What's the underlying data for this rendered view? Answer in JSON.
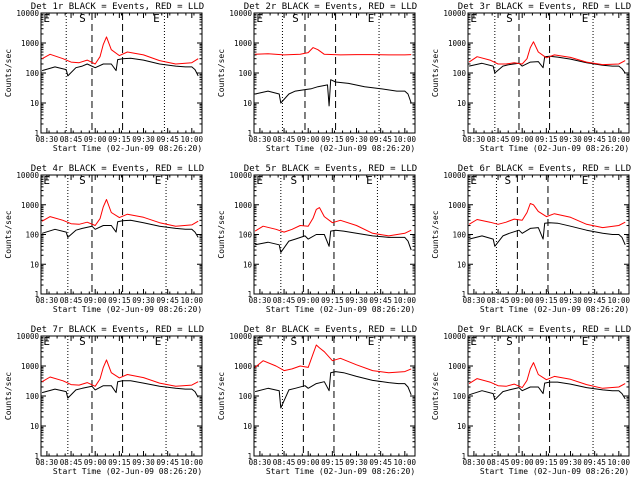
{
  "colors": {
    "events": "#000000",
    "lld": "#ff0000",
    "axes": "#000000",
    "background": "#ffffff"
  },
  "common": {
    "xlabel": "Start Time (02-Jun-09 08:26:20)",
    "ylabel": "Counts/sec",
    "xticks": [
      "08:30",
      "08:45",
      "09:00",
      "09:15",
      "09:30",
      "09:45",
      "10:00"
    ],
    "yticks": [
      "1",
      "10",
      "100",
      "1000",
      "10000"
    ],
    "markers": [
      "E",
      "S",
      "E"
    ]
  },
  "chart_data": [
    {
      "type": "line",
      "title": "Det 1r BLACK = Events, RED = LLD",
      "x_range": [
        "08:26:20",
        "10:06:20"
      ],
      "y_range": [
        1,
        10000
      ],
      "y_scale": "log",
      "grid": false,
      "vlines_dotted": [
        "08:42:00",
        "09:43:00"
      ],
      "vlines_dashed": [
        "08:58:00",
        "09:17:00"
      ],
      "series": [
        {
          "color": "#000000",
          "x": [
            "08:27",
            "08:35",
            "08:42",
            "08:43",
            "08:48",
            "08:52",
            "08:55",
            "09:00",
            "09:05",
            "09:10",
            "09:13",
            "09:14",
            "09:17",
            "09:22",
            "09:30",
            "09:40",
            "09:50",
            "09:56",
            "10:00",
            "10:02",
            "10:04"
          ],
          "y": [
            120,
            160,
            130,
            80,
            150,
            170,
            200,
            150,
            200,
            200,
            120,
            280,
            300,
            310,
            270,
            200,
            170,
            160,
            160,
            130,
            80
          ]
        },
        {
          "color": "#ff0000",
          "x": [
            "08:27",
            "08:32",
            "08:40",
            "08:45",
            "08:50",
            "08:55",
            "09:00",
            "09:03",
            "09:05",
            "09:07",
            "09:10",
            "09:15",
            "09:20",
            "09:30",
            "09:40",
            "09:50",
            "10:00",
            "10:04"
          ],
          "y": [
            300,
            420,
            300,
            230,
            220,
            270,
            200,
            350,
            900,
            1600,
            600,
            380,
            500,
            400,
            260,
            200,
            220,
            300
          ]
        }
      ]
    },
    {
      "type": "line",
      "title": "Det 2r BLACK = Events, RED = LLD",
      "x_range": [
        "08:26:20",
        "10:06:20"
      ],
      "y_range": [
        1,
        10000
      ],
      "y_scale": "log",
      "grid": false,
      "vlines_dotted": [
        "08:44:00",
        "09:44:00"
      ],
      "vlines_dashed": [
        "08:58:00",
        "09:17:00"
      ],
      "series": [
        {
          "color": "#000000",
          "x": [
            "08:27",
            "08:35",
            "08:42",
            "08:43",
            "08:48",
            "08:52",
            "08:58",
            "09:02",
            "09:06",
            "09:12",
            "09:13",
            "09:14",
            "09:17",
            "09:25",
            "09:35",
            "09:45",
            "09:55",
            "10:00",
            "10:02",
            "10:04"
          ],
          "y": [
            20,
            25,
            20,
            10,
            20,
            25,
            28,
            30,
            35,
            40,
            8,
            60,
            50,
            45,
            35,
            30,
            25,
            25,
            20,
            10
          ]
        },
        {
          "color": "#ff0000",
          "x": [
            "08:27",
            "08:35",
            "08:45",
            "08:55",
            "09:00",
            "09:03",
            "09:06",
            "09:10",
            "09:20",
            "09:30",
            "09:40",
            "09:50",
            "10:00",
            "10:04"
          ],
          "y": [
            420,
            440,
            400,
            420,
            480,
            700,
            600,
            420,
            400,
            410,
            410,
            400,
            400,
            410
          ]
        }
      ]
    },
    {
      "type": "line",
      "title": "Det 3r BLACK = Events, RED = LLD",
      "x_range": [
        "08:26:20",
        "10:06:20"
      ],
      "y_range": [
        1,
        10000
      ],
      "y_scale": "log",
      "grid": false,
      "vlines_dotted": [
        "08:43:00",
        "09:44:00"
      ],
      "vlines_dashed": [
        "08:58:00",
        "09:17:00"
      ],
      "series": [
        {
          "color": "#000000",
          "x": [
            "08:27",
            "08:35",
            "08:42",
            "08:43",
            "08:48",
            "08:52",
            "08:58",
            "09:00",
            "09:05",
            "09:10",
            "09:13",
            "09:14",
            "09:17",
            "09:22",
            "09:30",
            "09:40",
            "09:50",
            "09:56",
            "10:00",
            "10:02",
            "10:04"
          ],
          "y": [
            170,
            210,
            170,
            100,
            170,
            190,
            210,
            170,
            230,
            240,
            150,
            350,
            360,
            340,
            290,
            220,
            180,
            170,
            170,
            140,
            100
          ]
        },
        {
          "color": "#ff0000",
          "x": [
            "08:27",
            "08:32",
            "08:40",
            "08:45",
            "08:50",
            "08:55",
            "09:00",
            "09:03",
            "09:05",
            "09:07",
            "09:10",
            "09:15",
            "09:20",
            "09:30",
            "09:40",
            "09:50",
            "10:00",
            "10:04"
          ],
          "y": [
            230,
            350,
            270,
            200,
            200,
            220,
            200,
            300,
            700,
            1100,
            500,
            320,
            400,
            330,
            230,
            190,
            200,
            260
          ]
        }
      ]
    },
    {
      "type": "line",
      "title": "Det 4r BLACK = Events, RED = LLD",
      "x_range": [
        "08:26:20",
        "10:06:20"
      ],
      "y_range": [
        1,
        10000
      ],
      "y_scale": "log",
      "grid": false,
      "vlines_dotted": [
        "08:43:00",
        "09:44:00"
      ],
      "vlines_dashed": [
        "08:58:00",
        "09:17:00"
      ],
      "series": [
        {
          "color": "#000000",
          "x": [
            "08:27",
            "08:35",
            "08:42",
            "08:43",
            "08:48",
            "08:52",
            "08:58",
            "09:00",
            "09:05",
            "09:10",
            "09:13",
            "09:14",
            "09:17",
            "09:22",
            "09:30",
            "09:40",
            "09:50",
            "09:56",
            "10:00",
            "10:02",
            "10:04"
          ],
          "y": [
            110,
            150,
            120,
            80,
            140,
            160,
            190,
            150,
            200,
            200,
            120,
            270,
            290,
            300,
            250,
            190,
            160,
            150,
            150,
            120,
            80
          ]
        },
        {
          "color": "#ff0000",
          "x": [
            "08:27",
            "08:32",
            "08:40",
            "08:45",
            "08:50",
            "08:55",
            "09:00",
            "09:03",
            "09:05",
            "09:07",
            "09:10",
            "09:15",
            "09:20",
            "09:30",
            "09:40",
            "09:50",
            "10:00",
            "10:04"
          ],
          "y": [
            280,
            400,
            300,
            230,
            220,
            260,
            200,
            340,
            850,
            1500,
            550,
            370,
            480,
            380,
            250,
            190,
            210,
            280
          ]
        }
      ]
    },
    {
      "type": "line",
      "title": "Det 5r BLACK = Events, RED = LLD",
      "x_range": [
        "08:26:20",
        "10:06:20"
      ],
      "y_range": [
        1,
        10000
      ],
      "y_scale": "log",
      "grid": false,
      "vlines_dotted": [
        "08:43:00",
        "09:43:00"
      ],
      "vlines_dashed": [
        "08:57:00",
        "09:16:00"
      ],
      "series": [
        {
          "color": "#000000",
          "x": [
            "08:27",
            "08:35",
            "08:42",
            "08:43",
            "08:48",
            "08:52",
            "08:58",
            "09:00",
            "09:05",
            "09:10",
            "09:13",
            "09:14",
            "09:17",
            "09:22",
            "09:30",
            "09:40",
            "09:50",
            "09:56",
            "10:00",
            "10:02",
            "10:04"
          ],
          "y": [
            45,
            55,
            45,
            25,
            60,
            70,
            90,
            70,
            100,
            100,
            40,
            130,
            140,
            130,
            110,
            90,
            80,
            80,
            80,
            60,
            30
          ]
        },
        {
          "color": "#ff0000",
          "x": [
            "08:27",
            "08:32",
            "08:40",
            "08:45",
            "08:50",
            "08:55",
            "09:00",
            "09:03",
            "09:05",
            "09:07",
            "09:10",
            "09:15",
            "09:20",
            "09:30",
            "09:40",
            "09:50",
            "10:00",
            "10:04"
          ],
          "y": [
            130,
            190,
            150,
            120,
            150,
            200,
            190,
            350,
            700,
            800,
            400,
            250,
            300,
            200,
            110,
            90,
            110,
            140
          ]
        }
      ]
    },
    {
      "type": "line",
      "title": "Det 6r BLACK = Events, RED = LLD",
      "x_range": [
        "08:26:20",
        "10:06:20"
      ],
      "y_range": [
        1,
        10000
      ],
      "y_scale": "log",
      "grid": false,
      "vlines_dotted": [
        "08:44:00",
        "09:44:00"
      ],
      "vlines_dashed": [
        "08:57:00",
        "09:16:00"
      ],
      "series": [
        {
          "color": "#000000",
          "x": [
            "08:27",
            "08:35",
            "08:42",
            "08:43",
            "08:48",
            "08:52",
            "08:58",
            "09:00",
            "09:05",
            "09:10",
            "09:13",
            "09:14",
            "09:17",
            "09:22",
            "09:30",
            "09:40",
            "09:50",
            "09:56",
            "10:00",
            "10:02",
            "10:04"
          ],
          "y": [
            70,
            90,
            70,
            40,
            90,
            110,
            140,
            110,
            160,
            170,
            70,
            240,
            250,
            240,
            190,
            140,
            110,
            100,
            100,
            80,
            45
          ]
        },
        {
          "color": "#ff0000",
          "x": [
            "08:27",
            "08:32",
            "08:40",
            "08:45",
            "08:50",
            "08:55",
            "09:00",
            "09:03",
            "09:05",
            "09:07",
            "09:10",
            "09:15",
            "09:20",
            "09:30",
            "09:40",
            "09:50",
            "10:00",
            "10:04"
          ],
          "y": [
            220,
            320,
            260,
            220,
            260,
            330,
            300,
            550,
            1100,
            1000,
            600,
            400,
            500,
            380,
            220,
            170,
            200,
            260
          ]
        }
      ]
    },
    {
      "type": "line",
      "title": "Det 7r BLACK = Events, RED = LLD",
      "x_range": [
        "08:26:20",
        "10:06:20"
      ],
      "y_range": [
        1,
        10000
      ],
      "y_scale": "log",
      "grid": false,
      "vlines_dotted": [
        "08:43:00",
        "09:44:00"
      ],
      "vlines_dashed": [
        "08:58:00",
        "09:17:00"
      ],
      "series": [
        {
          "color": "#000000",
          "x": [
            "08:27",
            "08:35",
            "08:42",
            "08:43",
            "08:48",
            "08:52",
            "08:58",
            "09:00",
            "09:05",
            "09:10",
            "09:13",
            "09:14",
            "09:17",
            "09:22",
            "09:30",
            "09:40",
            "09:50",
            "09:56",
            "10:00",
            "10:02",
            "10:04"
          ],
          "y": [
            130,
            170,
            140,
            85,
            160,
            180,
            210,
            160,
            220,
            220,
            130,
            300,
            320,
            320,
            270,
            210,
            180,
            170,
            170,
            140,
            90
          ]
        },
        {
          "color": "#ff0000",
          "x": [
            "08:27",
            "08:32",
            "08:40",
            "08:45",
            "08:50",
            "08:55",
            "09:00",
            "09:03",
            "09:05",
            "09:07",
            "09:10",
            "09:15",
            "09:20",
            "09:30",
            "09:40",
            "09:50",
            "10:00",
            "10:04"
          ],
          "y": [
            300,
            430,
            320,
            240,
            230,
            280,
            210,
            370,
            900,
            1600,
            600,
            400,
            520,
            410,
            270,
            210,
            230,
            300
          ]
        }
      ]
    },
    {
      "type": "line",
      "title": "Det 8r BLACK = Events, RED = LLD",
      "x_range": [
        "08:26:20",
        "10:06:20"
      ],
      "y_range": [
        1,
        10000
      ],
      "y_scale": "log",
      "grid": false,
      "vlines_dotted": [
        "08:44:00",
        "09:44:00"
      ],
      "vlines_dashed": [
        "08:57:00",
        "09:16:00"
      ],
      "series": [
        {
          "color": "#000000",
          "x": [
            "08:27",
            "08:35",
            "08:42",
            "08:43",
            "08:48",
            "08:52",
            "08:58",
            "09:00",
            "09:05",
            "09:10",
            "09:13",
            "09:14",
            "09:17",
            "09:22",
            "09:30",
            "09:40",
            "09:50",
            "09:56",
            "10:00",
            "10:02",
            "10:04"
          ],
          "y": [
            140,
            180,
            150,
            40,
            160,
            180,
            220,
            180,
            260,
            300,
            150,
            600,
            650,
            600,
            450,
            330,
            280,
            260,
            260,
            200,
            110
          ]
        },
        {
          "color": "#ff0000",
          "x": [
            "08:27",
            "08:32",
            "08:40",
            "08:45",
            "08:50",
            "08:55",
            "09:00",
            "09:03",
            "09:05",
            "09:07",
            "09:10",
            "09:15",
            "09:20",
            "09:30",
            "09:40",
            "09:50",
            "10:00",
            "10:04"
          ],
          "y": [
            900,
            1500,
            1000,
            700,
            800,
            1000,
            900,
            2500,
            5000,
            4000,
            3000,
            1500,
            1800,
            1100,
            700,
            600,
            650,
            800
          ]
        }
      ]
    },
    {
      "type": "line",
      "title": "Det 9r BLACK = Events, RED = LLD",
      "x_range": [
        "08:26:20",
        "10:06:20"
      ],
      "y_range": [
        1,
        10000
      ],
      "y_scale": "log",
      "grid": false,
      "vlines_dotted": [
        "08:43:00",
        "09:44:00"
      ],
      "vlines_dashed": [
        "08:58:00",
        "09:17:00"
      ],
      "series": [
        {
          "color": "#000000",
          "x": [
            "08:27",
            "08:35",
            "08:42",
            "08:43",
            "08:48",
            "08:52",
            "08:58",
            "09:00",
            "09:05",
            "09:10",
            "09:13",
            "09:14",
            "09:17",
            "09:22",
            "09:30",
            "09:40",
            "09:50",
            "09:56",
            "10:00",
            "10:02",
            "10:04"
          ],
          "y": [
            110,
            150,
            120,
            75,
            140,
            160,
            190,
            150,
            200,
            200,
            120,
            270,
            290,
            290,
            250,
            190,
            160,
            150,
            150,
            120,
            80
          ]
        },
        {
          "color": "#ff0000",
          "x": [
            "08:27",
            "08:32",
            "08:40",
            "08:45",
            "08:50",
            "08:55",
            "09:00",
            "09:03",
            "09:05",
            "09:07",
            "09:10",
            "09:15",
            "09:20",
            "09:30",
            "09:40",
            "09:50",
            "10:00",
            "10:04"
          ],
          "y": [
            260,
            380,
            290,
            220,
            210,
            250,
            190,
            330,
            800,
            1300,
            520,
            350,
            450,
            360,
            240,
            180,
            200,
            260
          ]
        }
      ]
    }
  ]
}
